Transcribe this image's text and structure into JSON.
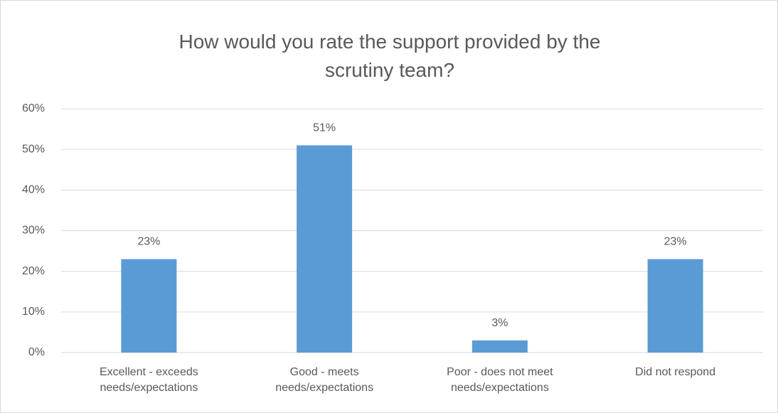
{
  "chart_data": {
    "type": "bar",
    "title": "How would you rate the support provided by the scrutiny team?",
    "categories": [
      "Excellent - exceeds needs/expectations",
      "Good - meets needs/expectations",
      "Poor - does not meet needs/expectations",
      "Did not respond"
    ],
    "values": [
      23,
      51,
      3,
      23
    ],
    "value_labels": [
      "23%",
      "51%",
      "3%",
      "23%"
    ],
    "color": "#5b9bd5",
    "ylim": [
      0,
      60
    ],
    "yticks": [
      {
        "value": 0,
        "label": "0%"
      },
      {
        "value": 10,
        "label": "10%"
      },
      {
        "value": 20,
        "label": "20%"
      },
      {
        "value": 30,
        "label": "30%"
      },
      {
        "value": 40,
        "label": "40%"
      },
      {
        "value": 50,
        "label": "50%"
      },
      {
        "value": 60,
        "label": "60%"
      }
    ],
    "grid": true
  }
}
